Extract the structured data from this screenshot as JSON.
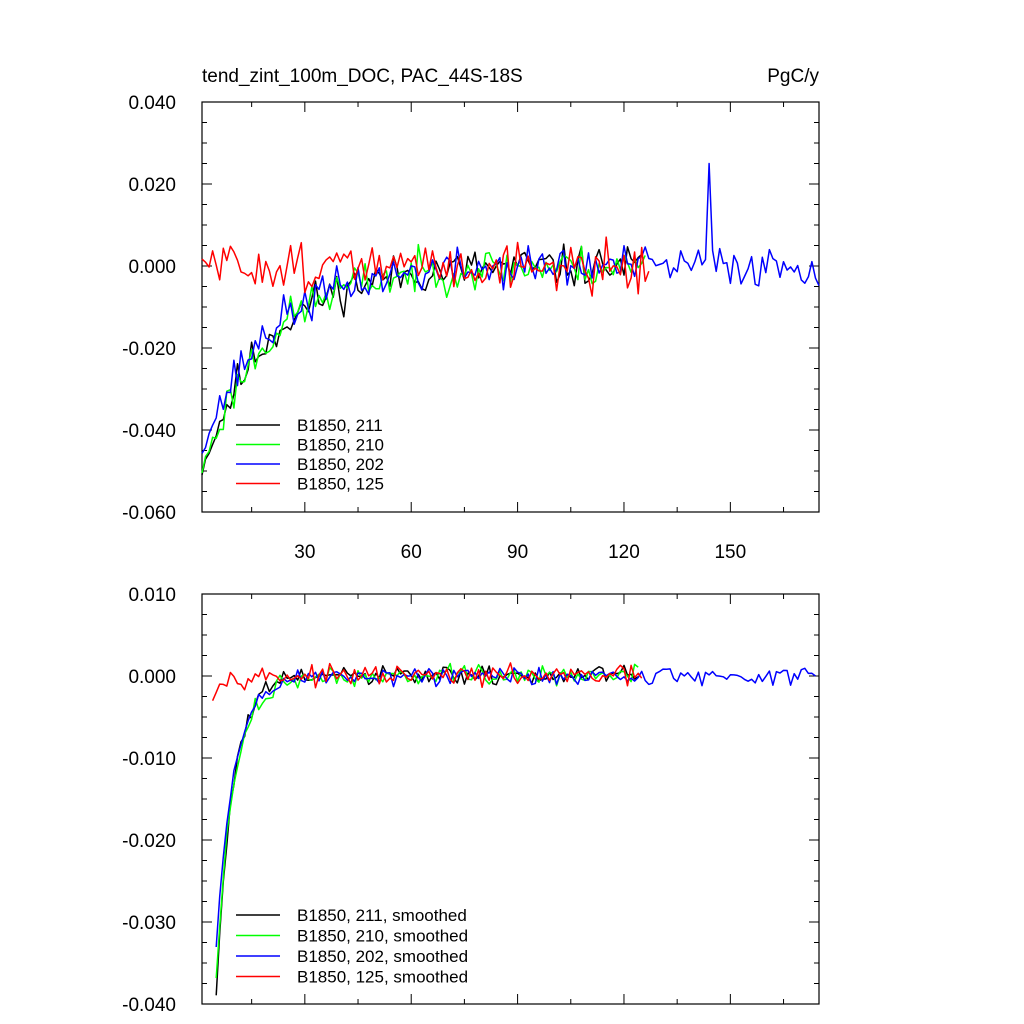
{
  "chart_data": [
    {
      "type": "line",
      "title_left": "tend_zint_100m_DOC, PAC_44S-18S",
      "title_right": "PgC/y",
      "xlim": [
        1,
        175
      ],
      "ylim": [
        -0.06,
        0.04
      ],
      "x_ticks": [
        30,
        60,
        90,
        120,
        150
      ],
      "x_tick_labels": [
        "30",
        "60",
        "90",
        "120",
        "150"
      ],
      "y_ticks": [
        -0.06,
        -0.04,
        -0.02,
        0.0,
        0.02,
        0.04
      ],
      "y_tick_labels": [
        "-0.060",
        "-0.040",
        "-0.020",
        "0.000",
        "0.020",
        "0.040"
      ],
      "legend": [
        "B1850, 211",
        "B1850, 210",
        "B1850, 202",
        "B1850, 125"
      ],
      "series": [
        {
          "name": "B1850, 211",
          "color": "#000000",
          "x_start": 1,
          "length": 125,
          "start_value": -0.05,
          "noise_amp": 0.0075,
          "decay": 0.055,
          "seed": 11
        },
        {
          "name": "B1850, 210",
          "color": "#00ff00",
          "x_start": 1,
          "length": 126,
          "start_value": -0.05,
          "noise_amp": 0.0075,
          "decay": 0.055,
          "seed": 23
        },
        {
          "name": "B1850, 202",
          "color": "#0000ff",
          "x_start": 1,
          "length": 175,
          "start_value": -0.045,
          "noise_amp": 0.0075,
          "decay": 0.055,
          "seed": 37,
          "spike_x": 144,
          "spike_value": 0.025
        },
        {
          "name": "B1850, 125",
          "color": "#ff0000",
          "x_start": 1,
          "length": 127,
          "start_value": 0.001,
          "noise_amp": 0.0085,
          "decay": 0.5,
          "seed": 51
        }
      ]
    },
    {
      "type": "line",
      "xlim": [
        1,
        175
      ],
      "ylim": [
        -0.04,
        0.01
      ],
      "x_ticks": [
        30,
        60,
        90,
        120,
        150
      ],
      "y_ticks": [
        -0.04,
        -0.03,
        -0.02,
        -0.01,
        0.0,
        0.01
      ],
      "y_tick_labels": [
        "-0.040",
        "-0.030",
        "-0.020",
        "-0.010",
        "0.000",
        "0.010"
      ],
      "legend": [
        "B1850, 211, smoothed",
        "B1850, 210, smoothed",
        "B1850, 202, smoothed",
        "B1850, 125, smoothed"
      ],
      "series": [
        {
          "name": "B1850, 211, smoothed",
          "color": "#000000",
          "x_start": 5,
          "length": 120,
          "start_value": -0.039,
          "noise_amp": 0.0018,
          "decay": 0.22,
          "seed": 61
        },
        {
          "name": "B1850, 210, smoothed",
          "color": "#00ff00",
          "x_start": 5,
          "length": 120,
          "start_value": -0.037,
          "noise_amp": 0.0018,
          "decay": 0.2,
          "seed": 73
        },
        {
          "name": "B1850, 202, smoothed",
          "color": "#0000ff",
          "x_start": 5,
          "length": 170,
          "start_value": -0.033,
          "noise_amp": 0.0018,
          "decay": 0.2,
          "seed": 89
        },
        {
          "name": "B1850, 125, smoothed",
          "color": "#ff0000",
          "x_start": 4,
          "length": 122,
          "start_value": -0.0027,
          "noise_amp": 0.0017,
          "decay": 0.5,
          "seed": 97
        }
      ]
    }
  ]
}
